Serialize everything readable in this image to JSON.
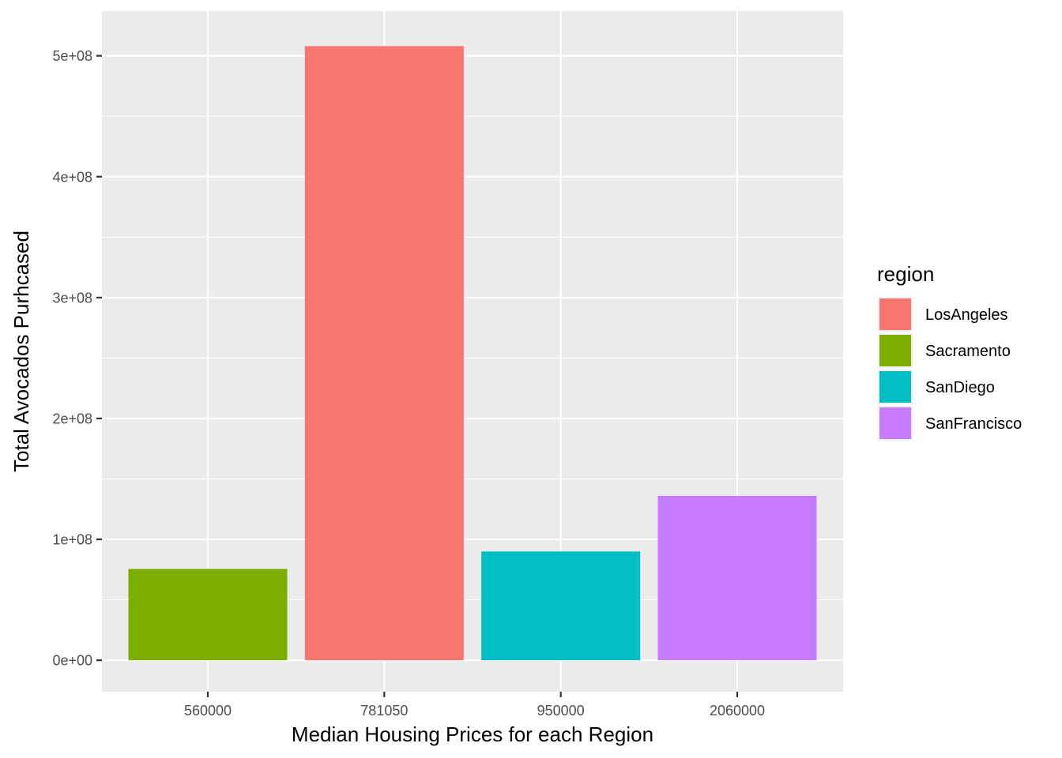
{
  "chart_data": {
    "type": "bar",
    "title": "",
    "xlabel": "Median Housing Prices for each Region",
    "ylabel": "Total Avocados Purhcased",
    "categories": [
      "560000",
      "781050",
      "950000",
      "2060000"
    ],
    "values": [
      75500000,
      508000000,
      90000000,
      136000000
    ],
    "bar_regions": [
      "Sacramento",
      "LosAngeles",
      "SanDiego",
      "SanFrancisco"
    ],
    "ylim": [
      -26000000,
      537000000
    ],
    "yticks": [
      0,
      100000000,
      200000000,
      300000000,
      400000000,
      500000000
    ],
    "ytick_labels": [
      "0e+00",
      "1e+08",
      "2e+08",
      "3e+08",
      "4e+08",
      "5e+08"
    ],
    "grid": true,
    "legend": {
      "title": "region",
      "position": "right",
      "items": [
        {
          "label": "LosAngeles",
          "color": "#F8766D"
        },
        {
          "label": "Sacramento",
          "color": "#7CAE00"
        },
        {
          "label": "SanDiego",
          "color": "#00BFC4"
        },
        {
          "label": "SanFrancisco",
          "color": "#C77CFF"
        }
      ]
    }
  },
  "colors": {
    "panel_background": "#EBEBEB",
    "grid_major": "#FFFFFF",
    "tick_text": "#4D4D4D"
  }
}
